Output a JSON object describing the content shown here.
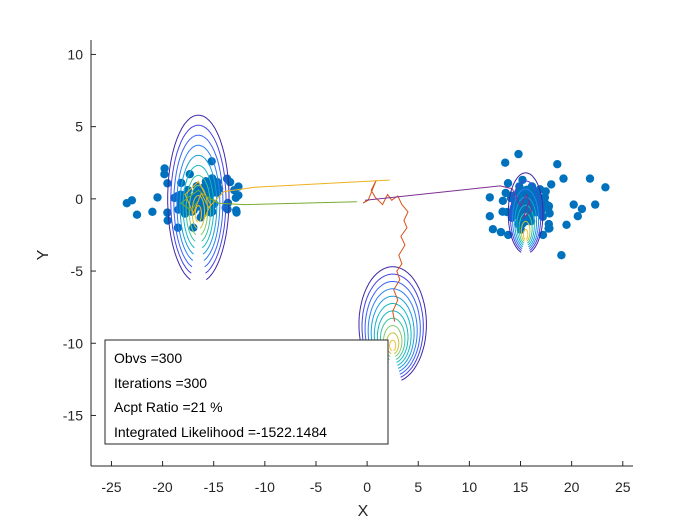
{
  "chart_data": {
    "type": "scatter",
    "title": "",
    "xlabel": "X",
    "ylabel": "Y",
    "xlim": [
      -27,
      26
    ],
    "ylim": [
      -18.5,
      11
    ],
    "xticks": [
      -25,
      -20,
      -15,
      -10,
      -5,
      0,
      5,
      10,
      15,
      20,
      25
    ],
    "yticks": [
      -15,
      -10,
      -5,
      0,
      5,
      10
    ],
    "grid": false,
    "marker_color": "#0072bd",
    "clusters": [
      {
        "center": [
          -16.5,
          0.0
        ],
        "spread": [
          2.3,
          0.9
        ]
      },
      {
        "center": [
          15.8,
          -0.4
        ],
        "spread": [
          1.6,
          1.0
        ]
      }
    ],
    "outlier_points": [
      {
        "x": -23.5,
        "y": -0.3
      },
      {
        "x": -23.0,
        "y": -0.1
      },
      {
        "x": -22.5,
        "y": -1.1
      },
      {
        "x": -21.0,
        "y": -0.9
      },
      {
        "x": -20.5,
        "y": 0.1
      },
      {
        "x": -19.8,
        "y": 2.1
      },
      {
        "x": -19.5,
        "y": -1.5
      },
      {
        "x": -18.5,
        "y": -2.0
      },
      {
        "x": -17.0,
        "y": -2.0
      },
      {
        "x": -15.2,
        "y": 2.6
      },
      {
        "x": -13.0,
        "y": 0.6
      },
      {
        "x": -12.8,
        "y": -0.8
      },
      {
        "x": 12.0,
        "y": 0.1
      },
      {
        "x": 12.0,
        "y": -1.2
      },
      {
        "x": 12.3,
        "y": -2.1
      },
      {
        "x": 13.5,
        "y": 2.5
      },
      {
        "x": 14.8,
        "y": 3.1
      },
      {
        "x": 13.8,
        "y": -2.5
      },
      {
        "x": 17.2,
        "y": -2.5
      },
      {
        "x": 18.6,
        "y": 2.4
      },
      {
        "x": 19.0,
        "y": -3.9
      },
      {
        "x": 19.2,
        "y": 1.4
      },
      {
        "x": 20.2,
        "y": -0.4
      },
      {
        "x": 20.6,
        "y": -1.2
      },
      {
        "x": 21.0,
        "y": -0.7
      },
      {
        "x": 21.8,
        "y": 1.4
      },
      {
        "x": 22.3,
        "y": -0.4
      },
      {
        "x": 23.3,
        "y": 0.8
      },
      {
        "x": 18.0,
        "y": 1.0
      },
      {
        "x": 19.5,
        "y": -1.8
      }
    ],
    "contour_groups": [
      {
        "center": [
          -16.5,
          0.0
        ],
        "rmax": [
          3.0,
          5.8
        ],
        "yoffset": 0.2,
        "levels": 10
      },
      {
        "center": [
          15.5,
          -1.0
        ],
        "rmax": [
          1.7,
          2.8
        ],
        "yoffset": 0.6,
        "levels": 8
      },
      {
        "center": [
          2.5,
          -8.7
        ],
        "rmax": [
          3.3,
          4.0
        ],
        "yoffset": 0.4,
        "levels": 11
      }
    ],
    "chains": [
      {
        "name": "",
        "color": "#d95319",
        "points": [
          [
            2.7,
            -8.5
          ],
          [
            2.5,
            -7.8
          ],
          [
            3.0,
            -7.0
          ],
          [
            2.6,
            -6.3
          ],
          [
            3.2,
            -5.6
          ],
          [
            2.9,
            -5.0
          ],
          [
            3.4,
            -4.5
          ],
          [
            3.1,
            -3.9
          ],
          [
            3.7,
            -3.2
          ],
          [
            3.3,
            -2.6
          ],
          [
            3.9,
            -2.0
          ],
          [
            3.6,
            -1.5
          ],
          [
            4.0,
            -0.9
          ],
          [
            3.4,
            -0.4
          ],
          [
            3.0,
            0.2
          ],
          [
            2.4,
            -0.1
          ],
          [
            2.0,
            0.3
          ],
          [
            1.5,
            -0.4
          ],
          [
            0.8,
            0.1
          ],
          [
            0.4,
            0.6
          ],
          [
            0.9,
            1.3
          ],
          [
            0.1,
            -0.1
          ],
          [
            -0.4,
            -0.3
          ],
          [
            0.0,
            -0.1
          ]
        ]
      },
      {
        "name": "",
        "color": "#edb120",
        "points": [
          [
            2.2,
            1.3
          ],
          [
            -11.0,
            0.8
          ],
          [
            -14.0,
            0.5
          ],
          [
            -15.5,
            -0.6
          ],
          [
            -16.2,
            0.4
          ],
          [
            -17.0,
            -1.0
          ],
          [
            -17.8,
            0.3
          ],
          [
            -16.5,
            1.2
          ],
          [
            -15.3,
            -0.4
          ],
          [
            -16.0,
            -1.5
          ]
        ]
      },
      {
        "name": "",
        "color": "#77ac30",
        "points": [
          [
            -1.0,
            -0.2
          ],
          [
            -12.0,
            -0.4
          ],
          [
            -14.5,
            -0.3
          ],
          [
            -15.8,
            0.2
          ],
          [
            -16.5,
            0.6
          ],
          [
            -17.5,
            0.1
          ],
          [
            -18.2,
            -0.3
          ],
          [
            -17.2,
            -0.8
          ],
          [
            -16.6,
            -0.2
          ]
        ]
      },
      {
        "name": "",
        "color": "#7e2f8e",
        "points": [
          [
            -0.2,
            -0.1
          ],
          [
            13.0,
            0.9
          ],
          [
            14.2,
            0.7
          ],
          [
            15.0,
            -0.5
          ],
          [
            15.6,
            0.3
          ],
          [
            16.1,
            -0.8
          ],
          [
            15.3,
            -1.3
          ],
          [
            15.8,
            -0.2
          ]
        ]
      }
    ],
    "legend": {
      "position": "bottom-left",
      "lines": [
        "Obvs =300",
        "Iterations =300",
        "Acpt Ratio =21 %",
        "Integrated Likelihood =-1522.1484"
      ]
    }
  }
}
